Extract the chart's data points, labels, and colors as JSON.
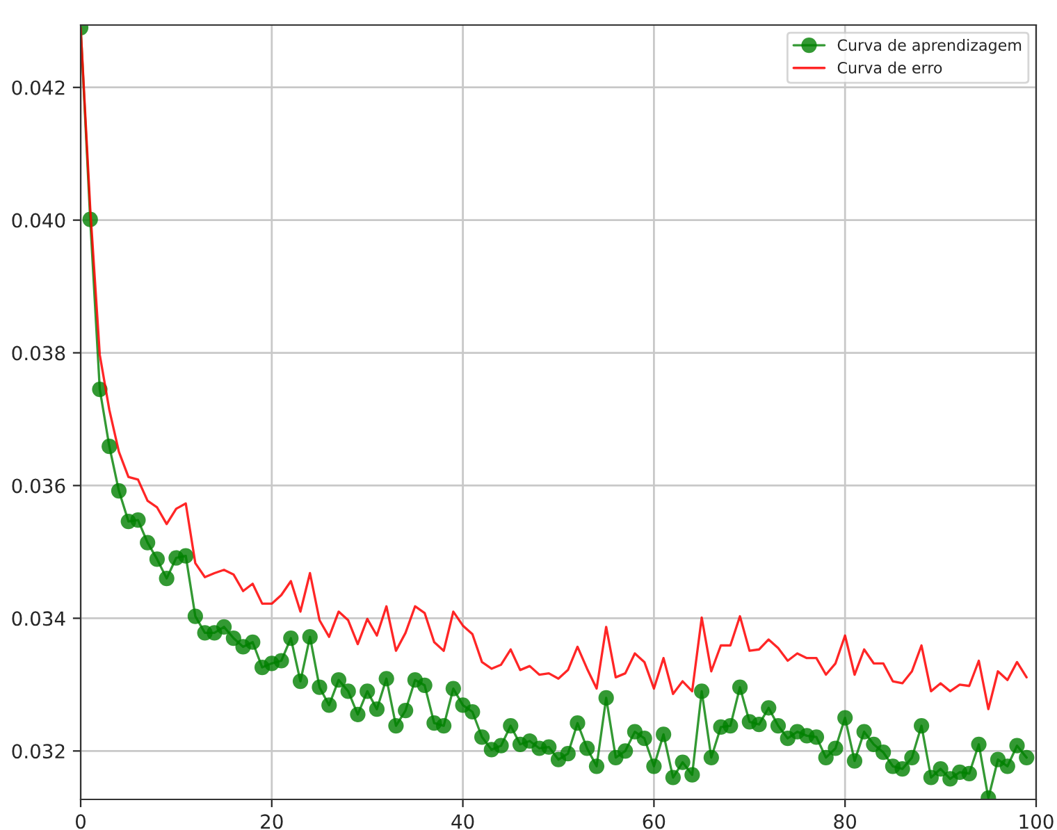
{
  "chart_data": {
    "type": "line",
    "x": [
      0,
      1,
      2,
      3,
      4,
      5,
      6,
      7,
      8,
      9,
      10,
      11,
      12,
      13,
      14,
      15,
      16,
      17,
      18,
      19,
      20,
      21,
      22,
      23,
      24,
      25,
      26,
      27,
      28,
      29,
      30,
      31,
      32,
      33,
      34,
      35,
      36,
      37,
      38,
      39,
      40,
      41,
      42,
      43,
      44,
      45,
      46,
      47,
      48,
      49,
      50,
      51,
      52,
      53,
      54,
      55,
      56,
      57,
      58,
      59,
      60,
      61,
      62,
      63,
      64,
      65,
      66,
      67,
      68,
      69,
      70,
      71,
      72,
      73,
      74,
      75,
      76,
      77,
      78,
      79,
      80,
      81,
      82,
      83,
      84,
      85,
      86,
      87,
      88,
      89,
      90,
      91,
      92,
      93,
      94,
      95,
      96,
      97,
      98,
      99
    ],
    "series": [
      {
        "name": "Curva de aprendizagem",
        "color": "#008000",
        "marker": "circle",
        "values": [
          0.0429,
          0.04001,
          0.03745,
          0.03659,
          0.03592,
          0.03546,
          0.03548,
          0.03514,
          0.03489,
          0.0346,
          0.03491,
          0.03494,
          0.03403,
          0.03378,
          0.03378,
          0.03387,
          0.0337,
          0.03357,
          0.03364,
          0.03326,
          0.03332,
          0.03336,
          0.0337,
          0.03305,
          0.03372,
          0.03296,
          0.03269,
          0.03307,
          0.0329,
          0.03255,
          0.0329,
          0.03263,
          0.03309,
          0.03238,
          0.03261,
          0.03307,
          0.03299,
          0.03242,
          0.03238,
          0.03294,
          0.03269,
          0.03259,
          0.03221,
          0.03202,
          0.03208,
          0.03238,
          0.0321,
          0.03215,
          0.03204,
          0.03206,
          0.03187,
          0.03196,
          0.03242,
          0.03204,
          0.03177,
          0.0328,
          0.0319,
          0.032,
          0.03229,
          0.03219,
          0.03177,
          0.03225,
          0.0316,
          0.03183,
          0.03164,
          0.0329,
          0.0319,
          0.03236,
          0.03238,
          0.03296,
          0.03244,
          0.0324,
          0.03265,
          0.03238,
          0.03219,
          0.03229,
          0.03223,
          0.03221,
          0.0319,
          0.03204,
          0.0325,
          0.03185,
          0.03229,
          0.0321,
          0.03198,
          0.03177,
          0.03173,
          0.0319,
          0.03238,
          0.0316,
          0.03173,
          0.03158,
          0.03168,
          0.03166,
          0.0321,
          0.03129,
          0.03187,
          0.03177,
          0.03208,
          0.0319
        ]
      },
      {
        "name": "Curva de erro",
        "color": "#ff0000",
        "marker": "none",
        "values": [
          0.0429,
          0.04018,
          0.03797,
          0.03714,
          0.03651,
          0.03613,
          0.03609,
          0.03577,
          0.03567,
          0.03542,
          0.03565,
          0.03573,
          0.03483,
          0.03462,
          0.03468,
          0.03473,
          0.03466,
          0.03441,
          0.03452,
          0.03422,
          0.03422,
          0.03435,
          0.03456,
          0.0341,
          0.03468,
          0.03397,
          0.03372,
          0.0341,
          0.03397,
          0.03361,
          0.03399,
          0.03374,
          0.03418,
          0.03351,
          0.03378,
          0.03418,
          0.03408,
          0.03364,
          0.03351,
          0.0341,
          0.03389,
          0.03376,
          0.03334,
          0.03324,
          0.0333,
          0.03353,
          0.03322,
          0.03328,
          0.03315,
          0.03317,
          0.03309,
          0.03322,
          0.03357,
          0.03324,
          0.03294,
          0.03387,
          0.03311,
          0.03317,
          0.03347,
          0.03334,
          0.03294,
          0.0334,
          0.03286,
          0.03305,
          0.0329,
          0.03401,
          0.0332,
          0.03359,
          0.03359,
          0.03403,
          0.03351,
          0.03353,
          0.03368,
          0.03355,
          0.03336,
          0.03347,
          0.0334,
          0.0334,
          0.03315,
          0.03332,
          0.03374,
          0.03315,
          0.03353,
          0.03332,
          0.03332,
          0.03305,
          0.03302,
          0.0332,
          0.03359,
          0.0329,
          0.03302,
          0.0329,
          0.033,
          0.03298,
          0.03336,
          0.03263,
          0.0332,
          0.03307,
          0.03334,
          0.03311
        ]
      }
    ],
    "xlim": [
      0,
      100
    ],
    "ylim": [
      0.03127,
      0.04294
    ],
    "xticks": [
      0,
      20,
      40,
      60,
      80,
      100
    ],
    "yticks": [
      0.032,
      0.034,
      0.036,
      0.038,
      {
        "value": 0.04,
        "label": "0.040"
      },
      0.042
    ],
    "grid": true,
    "legend": "top right",
    "line_style": "solid"
  }
}
